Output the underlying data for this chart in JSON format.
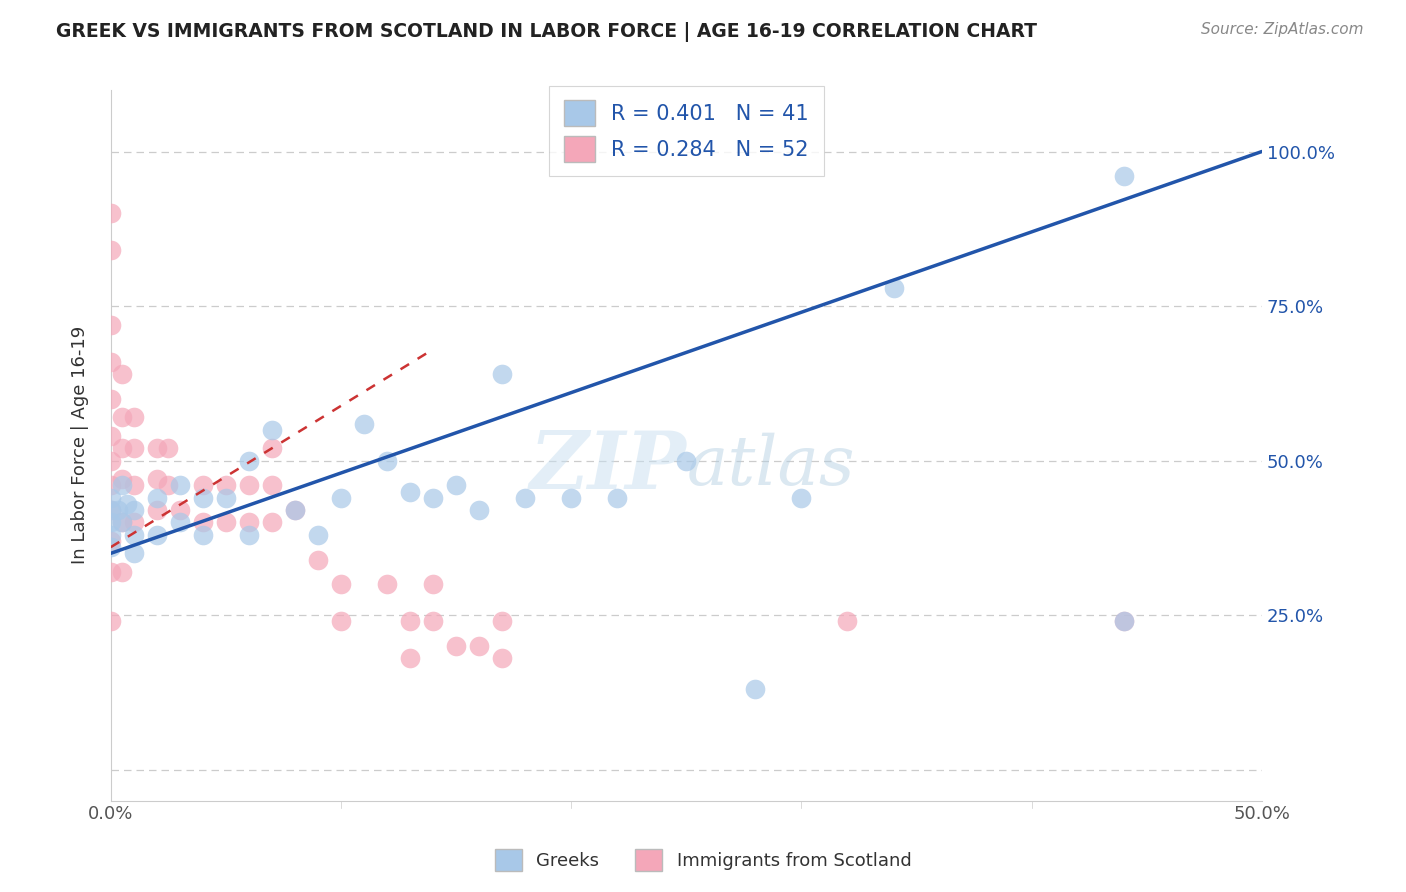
{
  "title": "GREEK VS IMMIGRANTS FROM SCOTLAND IN LABOR FORCE | AGE 16-19 CORRELATION CHART",
  "source": "Source: ZipAtlas.com",
  "ylabel": "In Labor Force | Age 16-19",
  "xlim": [
    0.0,
    0.5
  ],
  "ylim": [
    -0.05,
    1.1
  ],
  "blue_R": 0.401,
  "blue_N": 41,
  "pink_R": 0.284,
  "pink_N": 52,
  "blue_color": "#a8c8e8",
  "pink_color": "#f4a7b9",
  "blue_line_color": "#2255aa",
  "pink_line_color": "#cc3333",
  "pink_line_dash": [
    4,
    4
  ],
  "grid_color": "#cccccc",
  "grid_linestyle": "--",
  "blue_x": [
    0.0,
    0.0,
    0.0,
    0.0,
    0.0,
    0.003,
    0.005,
    0.005,
    0.007,
    0.01,
    0.01,
    0.01,
    0.02,
    0.02,
    0.03,
    0.03,
    0.04,
    0.04,
    0.05,
    0.06,
    0.06,
    0.07,
    0.08,
    0.09,
    0.1,
    0.11,
    0.12,
    0.13,
    0.14,
    0.15,
    0.16,
    0.17,
    0.18,
    0.2,
    0.22,
    0.25,
    0.28,
    0.3,
    0.34,
    0.44,
    0.44
  ],
  "blue_y": [
    0.42,
    0.44,
    0.4,
    0.38,
    0.36,
    0.42,
    0.46,
    0.4,
    0.43,
    0.42,
    0.38,
    0.35,
    0.44,
    0.38,
    0.46,
    0.4,
    0.44,
    0.38,
    0.44,
    0.5,
    0.38,
    0.55,
    0.42,
    0.38,
    0.44,
    0.56,
    0.5,
    0.45,
    0.44,
    0.46,
    0.42,
    0.64,
    0.44,
    0.44,
    0.44,
    0.5,
    0.13,
    0.44,
    0.78,
    0.96,
    0.24
  ],
  "pink_x": [
    0.0,
    0.0,
    0.0,
    0.0,
    0.0,
    0.0,
    0.0,
    0.0,
    0.0,
    0.0,
    0.0,
    0.0,
    0.005,
    0.005,
    0.005,
    0.005,
    0.005,
    0.005,
    0.01,
    0.01,
    0.01,
    0.01,
    0.02,
    0.02,
    0.02,
    0.025,
    0.025,
    0.03,
    0.04,
    0.04,
    0.05,
    0.05,
    0.06,
    0.06,
    0.07,
    0.07,
    0.07,
    0.08,
    0.09,
    0.1,
    0.1,
    0.12,
    0.13,
    0.13,
    0.14,
    0.14,
    0.15,
    0.16,
    0.17,
    0.17,
    0.32,
    0.44
  ],
  "pink_y": [
    0.9,
    0.84,
    0.72,
    0.66,
    0.6,
    0.54,
    0.5,
    0.46,
    0.42,
    0.37,
    0.32,
    0.24,
    0.64,
    0.57,
    0.52,
    0.47,
    0.4,
    0.32,
    0.57,
    0.52,
    0.46,
    0.4,
    0.52,
    0.47,
    0.42,
    0.52,
    0.46,
    0.42,
    0.46,
    0.4,
    0.46,
    0.4,
    0.46,
    0.4,
    0.52,
    0.46,
    0.4,
    0.42,
    0.34,
    0.3,
    0.24,
    0.3,
    0.24,
    0.18,
    0.3,
    0.24,
    0.2,
    0.2,
    0.24,
    0.18,
    0.24,
    0.24
  ],
  "blue_line_x0": 0.0,
  "blue_line_x1": 0.5,
  "blue_line_y0": 0.35,
  "blue_line_y1": 1.0,
  "pink_line_x0": 0.0,
  "pink_line_x1": 0.14,
  "pink_line_y0": 0.36,
  "pink_line_y1": 0.68
}
